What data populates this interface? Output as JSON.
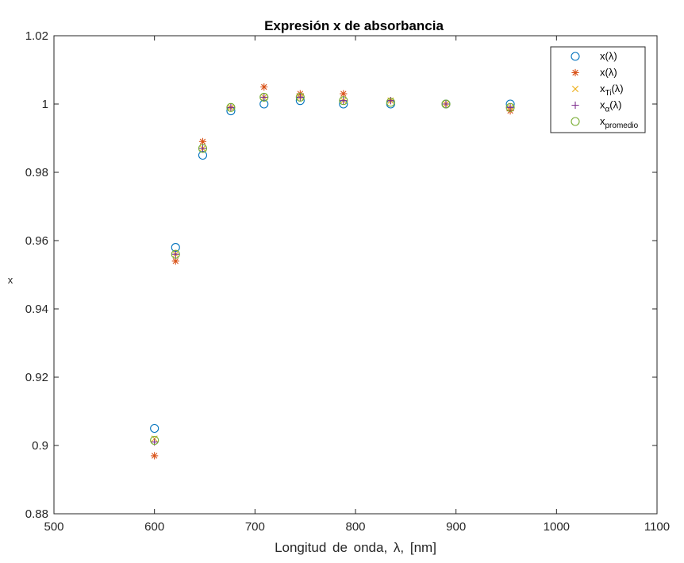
{
  "chart_data": {
    "type": "scatter",
    "title": "Expresión x de absorbancia",
    "xlabel": "Longitud de onda, λ, [nm]",
    "ylabel": "x",
    "xlim": [
      500,
      1100
    ],
    "ylim": [
      0.88,
      1.02
    ],
    "xticks": [
      500,
      600,
      700,
      800,
      900,
      1000,
      1100
    ],
    "xtick_labels": [
      "500",
      "600",
      "700",
      "800",
      "900",
      "1000",
      "1100"
    ],
    "yticks": [
      0.88,
      0.9,
      0.92,
      0.94,
      0.96,
      0.98,
      1.0,
      1.02
    ],
    "ytick_labels": [
      "0.88",
      "0.9",
      "0.92",
      "0.94",
      "0.96",
      "0.98",
      "1",
      "1.02"
    ],
    "grid": false,
    "legend_position": "top-right",
    "series": [
      {
        "base": "x(λ)",
        "sub": "",
        "marker": "circle",
        "color": "#0072BD",
        "x": [
          600,
          621,
          648,
          676,
          709,
          745,
          788,
          835,
          890,
          954
        ],
        "y": [
          0.905,
          0.958,
          0.985,
          0.998,
          1.0,
          1.001,
          1.0,
          1.0,
          1.0,
          1.0
        ]
      },
      {
        "base": "x(λ)",
        "sub": "",
        "marker": "asterisk",
        "color": "#D95319",
        "x": [
          600,
          621,
          648,
          676,
          709,
          745,
          788,
          835,
          890,
          954
        ],
        "y": [
          0.897,
          0.954,
          0.989,
          0.999,
          1.005,
          1.003,
          1.003,
          1.001,
          1.0,
          0.998
        ]
      },
      {
        "base": "x",
        "sub": "Ti",
        "suffix": "(λ)",
        "marker": "x",
        "color": "#EDB120",
        "x": [
          600,
          621,
          648,
          676,
          709,
          745,
          788,
          835,
          890,
          954
        ],
        "y": [
          0.902,
          0.956,
          0.987,
          0.999,
          1.002,
          1.002,
          1.001,
          1.001,
          1.0,
          0.999
        ]
      },
      {
        "base": "x",
        "sub": "α",
        "suffix": "(λ)",
        "marker": "plus",
        "color": "#7E2F8E",
        "x": [
          600,
          621,
          648,
          676,
          709,
          745,
          788,
          835,
          890,
          954
        ],
        "y": [
          0.901,
          0.956,
          0.987,
          0.999,
          1.002,
          1.002,
          1.001,
          1.001,
          1.0,
          0.999
        ]
      },
      {
        "base": "x",
        "sub": "promedio",
        "suffix": "",
        "marker": "circle",
        "color": "#77AC30",
        "x": [
          600,
          621,
          648,
          676,
          709,
          745,
          788,
          835,
          890,
          954
        ],
        "y": [
          0.9015,
          0.956,
          0.987,
          0.999,
          1.002,
          1.002,
          1.001,
          1.0005,
          1.0,
          0.999
        ]
      }
    ]
  }
}
